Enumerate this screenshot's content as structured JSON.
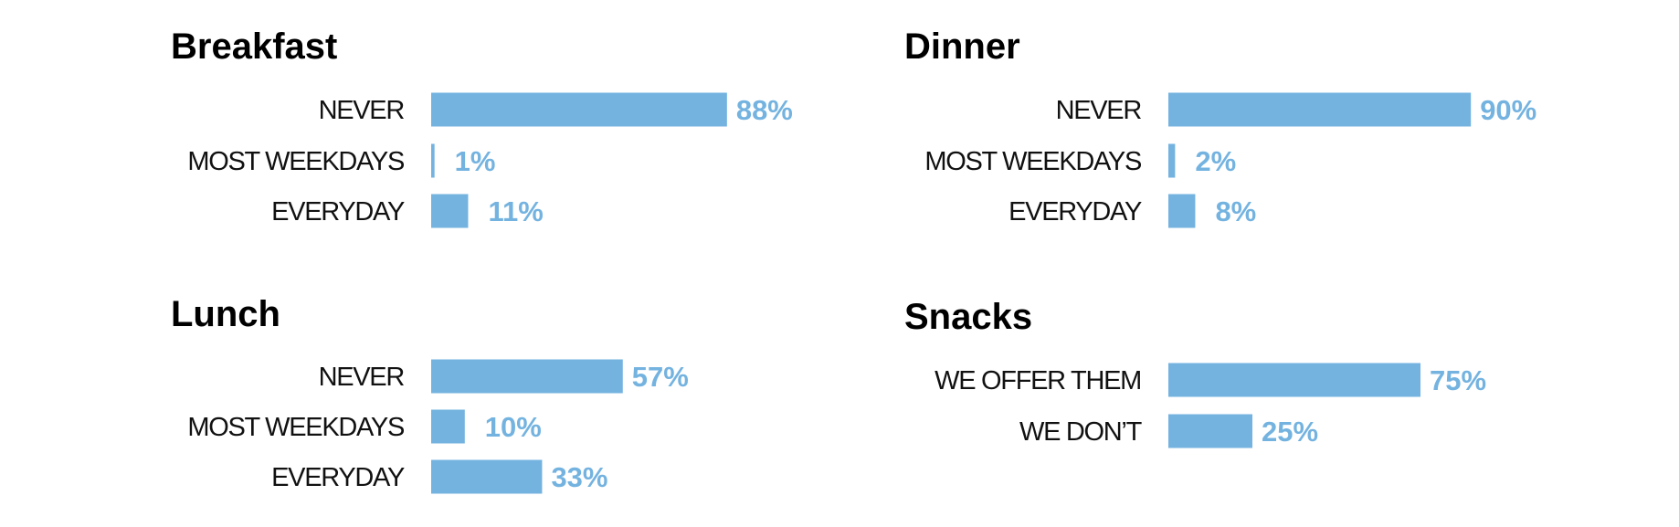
{
  "colors": {
    "bar": "#74b3e0",
    "value_label": "#74b3e0",
    "title": "#000000",
    "category_label": "#111111"
  },
  "chart_data": [
    {
      "type": "bar",
      "orientation": "horizontal",
      "title": "Breakfast",
      "categories": [
        "NEVER",
        "MOST WEEKDAYS",
        "EVERYDAY"
      ],
      "values": [
        88,
        1,
        11
      ],
      "value_labels": [
        "88%",
        "1%",
        "11%"
      ],
      "unit": "%",
      "xlim": [
        0,
        100
      ]
    },
    {
      "type": "bar",
      "orientation": "horizontal",
      "title": "Dinner",
      "categories": [
        "NEVER",
        "MOST WEEKDAYS",
        "EVERYDAY"
      ],
      "values": [
        90,
        2,
        8
      ],
      "value_labels": [
        "90%",
        "2%",
        "8%"
      ],
      "unit": "%",
      "xlim": [
        0,
        100
      ]
    },
    {
      "type": "bar",
      "orientation": "horizontal",
      "title": "Lunch",
      "categories": [
        "NEVER",
        "MOST WEEKDAYS",
        "EVERYDAY"
      ],
      "values": [
        57,
        10,
        33
      ],
      "value_labels": [
        "57%",
        "10%",
        "33%"
      ],
      "unit": "%",
      "xlim": [
        0,
        100
      ]
    },
    {
      "type": "bar",
      "orientation": "horizontal",
      "title": "Snacks",
      "categories": [
        "WE OFFER THEM",
        "WE DON’T"
      ],
      "values": [
        75,
        25
      ],
      "value_labels": [
        "75%",
        "25%"
      ],
      "unit": "%",
      "xlim": [
        0,
        100
      ]
    }
  ]
}
